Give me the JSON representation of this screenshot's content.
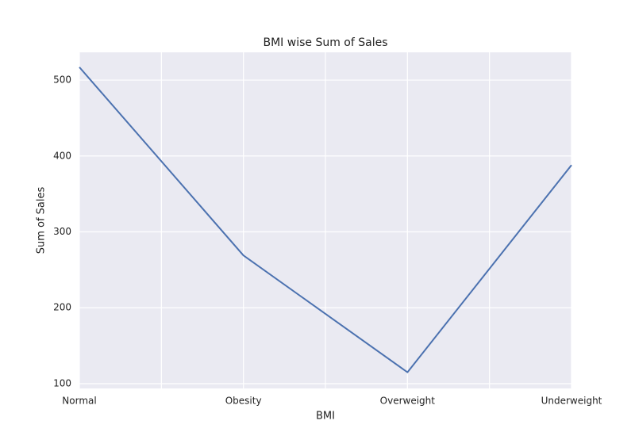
{
  "chart_data": {
    "type": "line",
    "title": "BMI wise Sum of Sales",
    "x_label": "BMI",
    "y_label": "Sum of Sales",
    "categories": [
      "Normal",
      "Obesity",
      "Overweight",
      "Underweight"
    ],
    "series": [
      {
        "name": "Sum of Sales",
        "color": "#4c72b0",
        "values": [
          517,
          269,
          115,
          388
        ]
      }
    ],
    "ylim": [
      93.7,
      536.6
    ],
    "yticks": [
      100,
      200,
      300,
      400,
      500
    ],
    "grid": true
  }
}
